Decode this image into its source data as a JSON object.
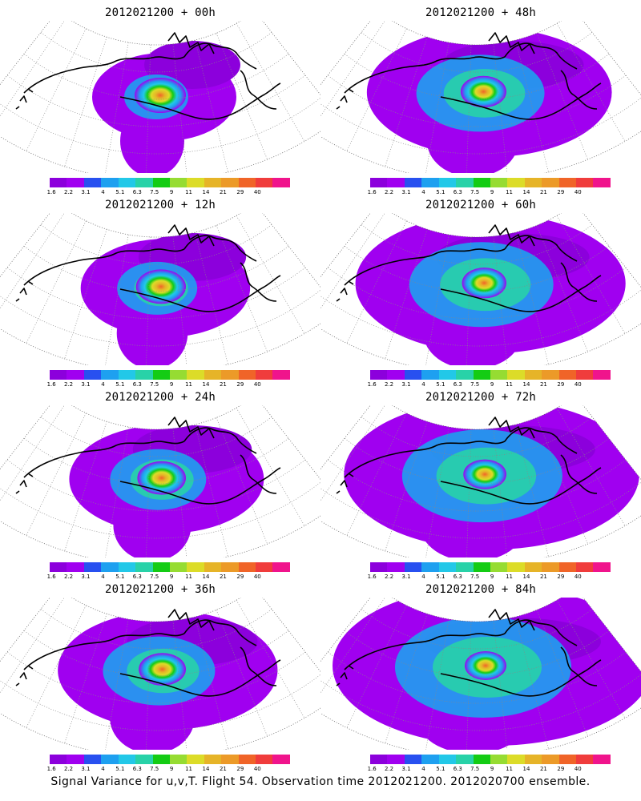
{
  "colorbar": {
    "colors": [
      "#8c00dc",
      "#a000f0",
      "#2850f0",
      "#1ea0f0",
      "#22c8e8",
      "#28d2a8",
      "#14cc14",
      "#96dc32",
      "#dcdc28",
      "#e6b428",
      "#ec9a28",
      "#f06428",
      "#f03c3c",
      "#f0148c"
    ],
    "labels": [
      "1.6",
      "2.2",
      "3.1",
      "4",
      "5.1",
      "6.3",
      "7.5",
      "9",
      "11",
      "14",
      "21",
      "29",
      "40"
    ]
  },
  "panels": [
    {
      "title": "2012021200 + 00h"
    },
    {
      "title": "2012021200 + 48h"
    },
    {
      "title": "2012021200 + 12h"
    },
    {
      "title": "2012021200 + 60h"
    },
    {
      "title": "2012021200 + 24h"
    },
    {
      "title": "2012021200 + 72h"
    },
    {
      "title": "2012021200 + 36h"
    },
    {
      "title": "2012021200 + 84h"
    }
  ],
  "footer": "Signal Variance for u,v,T. Flight 54. Observation time 2012021200. 2012020700 ensemble."
}
